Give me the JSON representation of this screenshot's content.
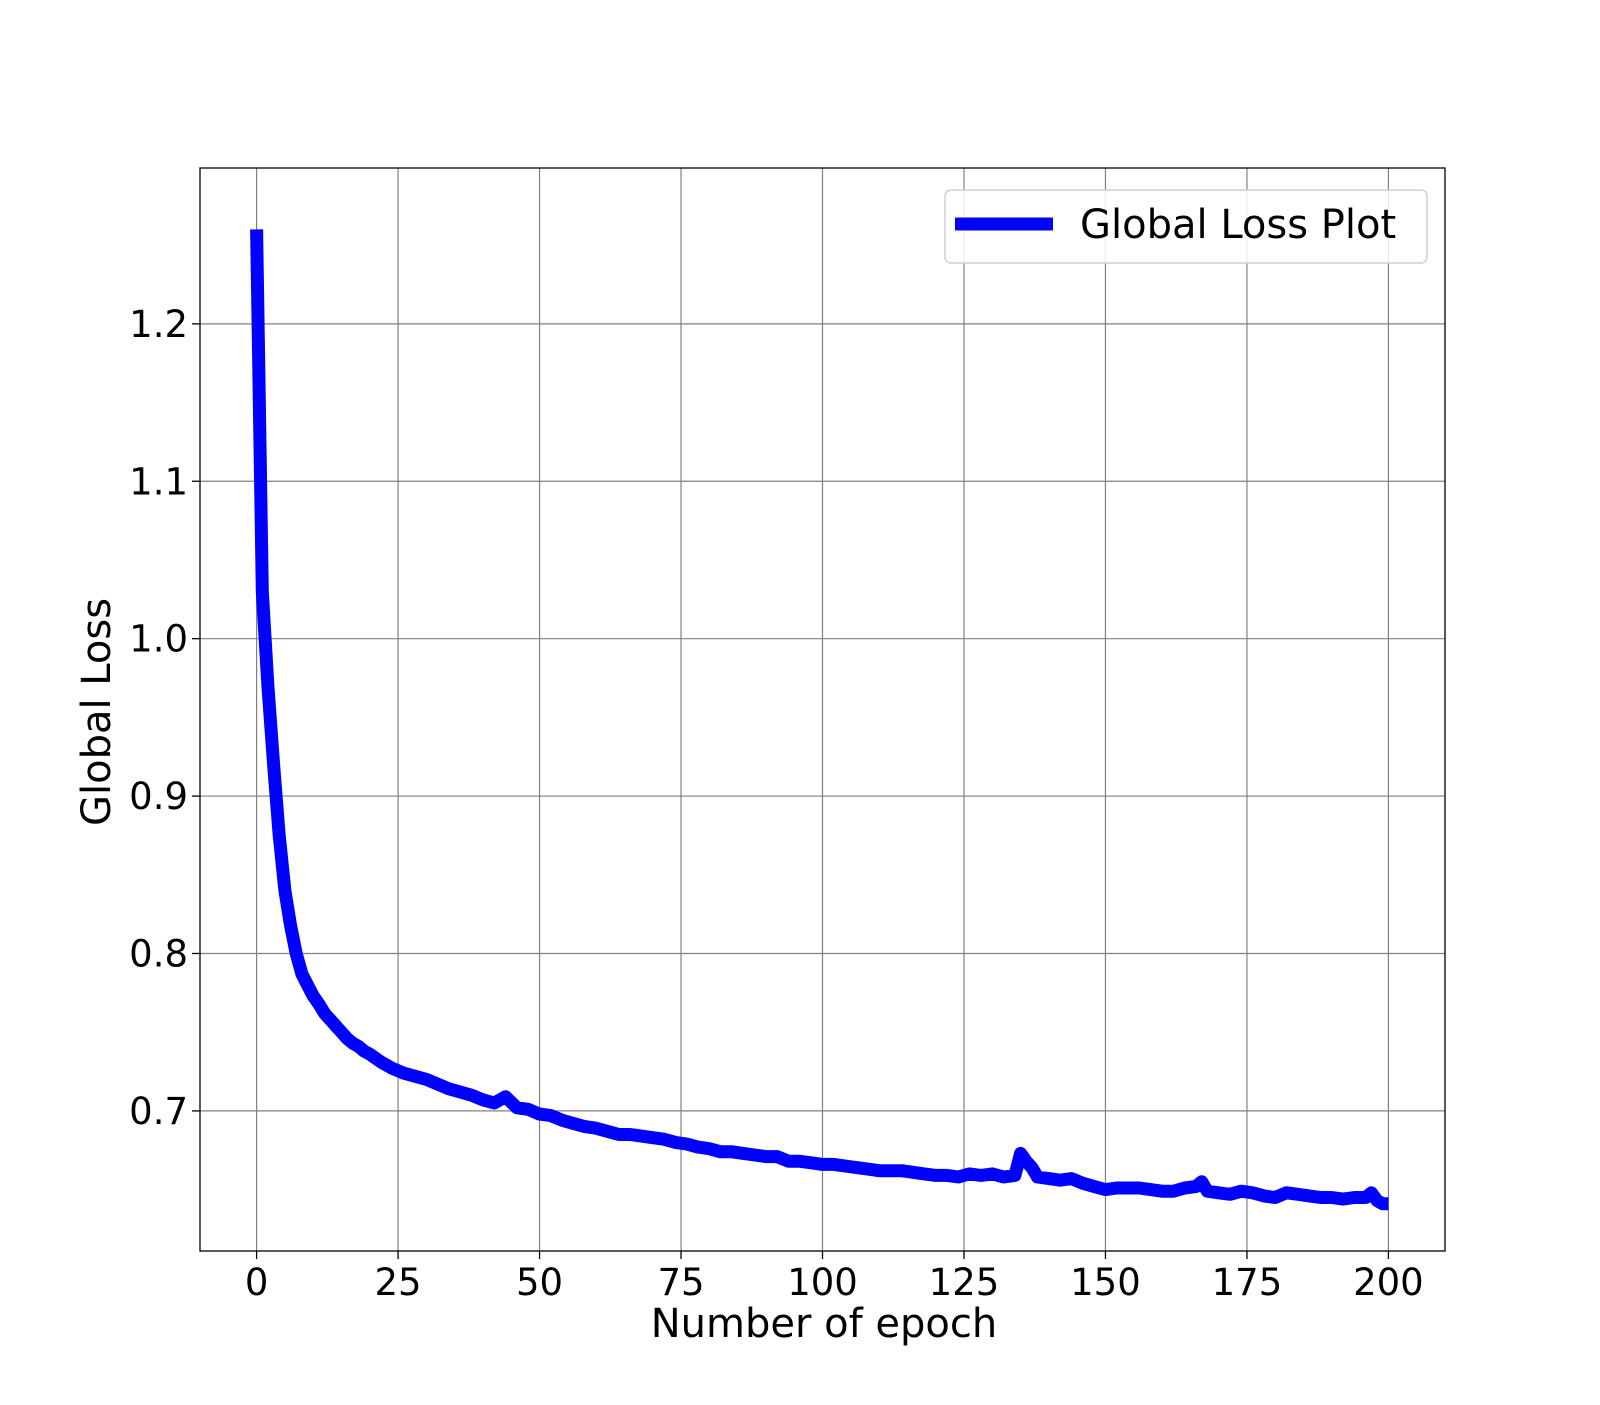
{
  "chart_data": {
    "type": "line",
    "title": "",
    "xlabel": "Number of epoch",
    "ylabel": "Global Loss",
    "xlim": [
      -10,
      210
    ],
    "ylim": [
      0.611,
      1.299
    ],
    "xticks": [
      0,
      25,
      50,
      75,
      100,
      125,
      150,
      175,
      200
    ],
    "yticks": [
      0.7,
      0.8,
      0.9,
      1.0,
      1.1,
      1.2
    ],
    "xtick_labels": [
      "0",
      "25",
      "50",
      "75",
      "100",
      "125",
      "150",
      "175",
      "200"
    ],
    "ytick_labels": [
      "0.7",
      "0.8",
      "0.9",
      "1.0",
      "1.1",
      "1.2"
    ],
    "grid": true,
    "legend_position": "top-right",
    "series": [
      {
        "name": "Global Loss Plot",
        "color": "#0000ff",
        "x": [
          0,
          1,
          2,
          3,
          4,
          5,
          6,
          7,
          8,
          9,
          10,
          11,
          12,
          13,
          14,
          15,
          16,
          17,
          18,
          19,
          20,
          22,
          24,
          26,
          28,
          30,
          32,
          34,
          36,
          38,
          40,
          42,
          44,
          46,
          48,
          50,
          52,
          54,
          56,
          58,
          60,
          62,
          64,
          66,
          68,
          70,
          72,
          74,
          76,
          78,
          80,
          82,
          84,
          86,
          88,
          90,
          92,
          94,
          96,
          98,
          100,
          102,
          104,
          106,
          108,
          110,
          112,
          114,
          116,
          118,
          120,
          122,
          124,
          126,
          128,
          130,
          132,
          134,
          135,
          136,
          137,
          138,
          140,
          142,
          144,
          146,
          148,
          150,
          152,
          154,
          156,
          158,
          160,
          162,
          164,
          166,
          167,
          168,
          170,
          172,
          174,
          176,
          178,
          180,
          182,
          184,
          186,
          188,
          190,
          192,
          194,
          196,
          197,
          198,
          199,
          200
        ],
        "values": [
          1.26,
          1.03,
          0.97,
          0.92,
          0.875,
          0.84,
          0.818,
          0.8,
          0.787,
          0.78,
          0.773,
          0.768,
          0.762,
          0.758,
          0.754,
          0.75,
          0.746,
          0.743,
          0.741,
          0.738,
          0.736,
          0.731,
          0.727,
          0.724,
          0.722,
          0.72,
          0.717,
          0.714,
          0.712,
          0.71,
          0.707,
          0.705,
          0.709,
          0.702,
          0.701,
          0.698,
          0.697,
          0.694,
          0.692,
          0.69,
          0.689,
          0.687,
          0.685,
          0.685,
          0.684,
          0.683,
          0.682,
          0.68,
          0.679,
          0.677,
          0.676,
          0.674,
          0.674,
          0.673,
          0.672,
          0.671,
          0.671,
          0.668,
          0.668,
          0.667,
          0.666,
          0.666,
          0.665,
          0.664,
          0.663,
          0.662,
          0.662,
          0.662,
          0.661,
          0.66,
          0.659,
          0.659,
          0.658,
          0.66,
          0.659,
          0.66,
          0.658,
          0.659,
          0.673,
          0.668,
          0.664,
          0.658,
          0.657,
          0.656,
          0.657,
          0.654,
          0.652,
          0.65,
          0.651,
          0.651,
          0.651,
          0.65,
          0.649,
          0.649,
          0.651,
          0.652,
          0.655,
          0.649,
          0.648,
          0.647,
          0.649,
          0.648,
          0.646,
          0.645,
          0.648,
          0.647,
          0.646,
          0.645,
          0.645,
          0.644,
          0.645,
          0.645,
          0.648,
          0.643,
          0.641,
          0.641
        ]
      }
    ]
  }
}
